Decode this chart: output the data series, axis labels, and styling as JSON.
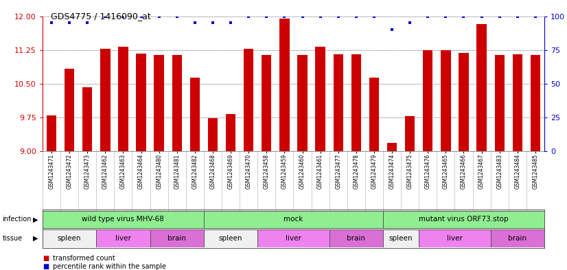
{
  "title": "GDS4775 / 1416090_at",
  "samples": [
    "GSM1243471",
    "GSM1243472",
    "GSM1243473",
    "GSM1243462",
    "GSM1243463",
    "GSM1243464",
    "GSM1243480",
    "GSM1243481",
    "GSM1243482",
    "GSM1243468",
    "GSM1243469",
    "GSM1243470",
    "GSM1243458",
    "GSM1243459",
    "GSM1243460",
    "GSM1243461",
    "GSM1243477",
    "GSM1243478",
    "GSM1243479",
    "GSM1243474",
    "GSM1243475",
    "GSM1243476",
    "GSM1243465",
    "GSM1243466",
    "GSM1243467",
    "GSM1243483",
    "GSM1243484",
    "GSM1243485"
  ],
  "bar_values": [
    9.8,
    10.84,
    10.42,
    11.27,
    11.32,
    11.17,
    11.14,
    11.14,
    10.64,
    9.73,
    9.82,
    11.28,
    11.14,
    11.95,
    11.14,
    11.32,
    11.15,
    11.15,
    10.64,
    9.18,
    9.78,
    11.25,
    11.25,
    11.18,
    11.82,
    11.14,
    11.15,
    11.14
  ],
  "percentile_values": [
    95,
    95,
    95,
    100,
    100,
    100,
    100,
    100,
    95,
    95,
    95,
    100,
    100,
    100,
    100,
    100,
    100,
    100,
    100,
    90,
    95,
    100,
    100,
    100,
    100,
    100,
    100,
    100
  ],
  "bar_color": "#cc0000",
  "dot_color": "#0000cc",
  "ylim_left": [
    9.0,
    12.0
  ],
  "ylim_right": [
    0,
    100
  ],
  "yticks_left": [
    9.0,
    9.75,
    10.5,
    11.25,
    12.0
  ],
  "yticks_right": [
    0,
    25,
    50,
    75,
    100
  ],
  "infection_groups": [
    {
      "label": "wild type virus MHV-68",
      "start": 0,
      "end": 9
    },
    {
      "label": "mock",
      "start": 9,
      "end": 19
    },
    {
      "label": "mutant virus ORF73.stop",
      "start": 19,
      "end": 28
    }
  ],
  "tissue_groups": [
    {
      "label": "spleen",
      "start": 0,
      "end": 3,
      "type": "spleen"
    },
    {
      "label": "liver",
      "start": 3,
      "end": 6,
      "type": "liver"
    },
    {
      "label": "brain",
      "start": 6,
      "end": 9,
      "type": "brain"
    },
    {
      "label": "spleen",
      "start": 9,
      "end": 12,
      "type": "spleen"
    },
    {
      "label": "liver",
      "start": 12,
      "end": 16,
      "type": "liver"
    },
    {
      "label": "brain",
      "start": 16,
      "end": 19,
      "type": "brain"
    },
    {
      "label": "spleen",
      "start": 19,
      "end": 21,
      "type": "spleen"
    },
    {
      "label": "liver",
      "start": 21,
      "end": 25,
      "type": "liver"
    },
    {
      "label": "brain",
      "start": 25,
      "end": 28,
      "type": "brain"
    }
  ],
  "infection_color": "#90ee90",
  "spleen_color": "#f0f0f0",
  "liver_color": "#ee82ee",
  "brain_color": "#da70d6",
  "bg_color": "#ffffff",
  "left_tick_color": "#cc0000",
  "right_tick_color": "#0000cc",
  "xticklabel_bg": "#dddddd"
}
